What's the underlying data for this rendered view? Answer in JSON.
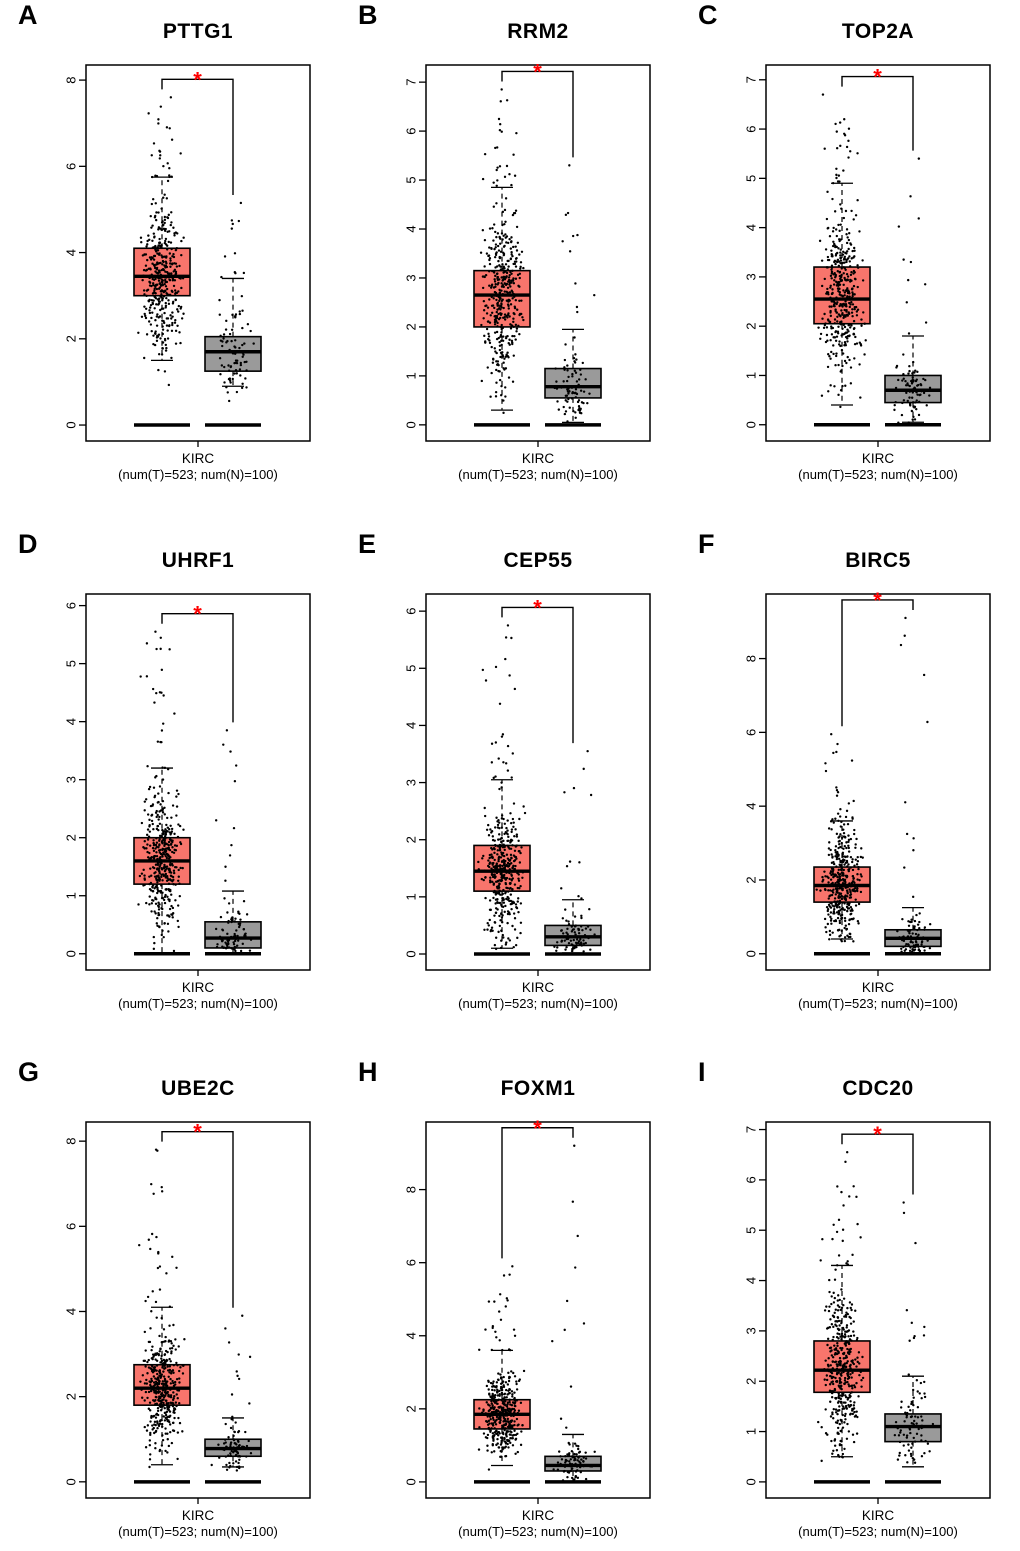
{
  "style": {
    "tumor_color": "#F8756C",
    "normal_color": "#9A9A9A",
    "sig_color": "#FF0000",
    "axis_color": "#000000",
    "background": "#FFFFFF"
  },
  "chart_data": [
    {
      "panel": "A",
      "title": "PTTG1",
      "type": "boxplot",
      "xlabel": "KIRC",
      "xlabel_sub": "(num(T)=523; num(N)=100)",
      "significance": "*",
      "ylim": [
        -0.37,
        8.35
      ],
      "yticks": [
        0,
        2,
        4,
        6,
        8
      ],
      "groups": [
        {
          "name": "Tumor",
          "n": 523,
          "color": "#F8756C",
          "whisker_low": 1.5,
          "q1": 3.0,
          "median": 3.45,
          "q3": 4.1,
          "whisker_high": 5.75,
          "max_point": 7.6,
          "zero_rug": true
        },
        {
          "name": "Normal",
          "n": 100,
          "color": "#9A9A9A",
          "whisker_low": 0.9,
          "q1": 1.25,
          "median": 1.7,
          "q3": 2.05,
          "whisker_high": 3.4,
          "max_point": 5.15,
          "zero_rug": true
        }
      ]
    },
    {
      "panel": "B",
      "title": "RRM2",
      "type": "boxplot",
      "xlabel": "KIRC",
      "xlabel_sub": "(num(T)=523; num(N)=100)",
      "significance": "*",
      "ylim": [
        -0.33,
        7.35
      ],
      "yticks": [
        0,
        1,
        2,
        3,
        4,
        5,
        6,
        7
      ],
      "groups": [
        {
          "name": "Tumor",
          "n": 523,
          "color": "#F8756C",
          "whisker_low": 0.3,
          "q1": 2.0,
          "median": 2.65,
          "q3": 3.15,
          "whisker_high": 4.85,
          "max_point": 6.85,
          "zero_rug": true
        },
        {
          "name": "Normal",
          "n": 100,
          "color": "#9A9A9A",
          "whisker_low": 0.05,
          "q1": 0.55,
          "median": 0.78,
          "q3": 1.15,
          "whisker_high": 1.95,
          "max_point": 5.3,
          "zero_rug": true
        }
      ]
    },
    {
      "panel": "C",
      "title": "TOP2A",
      "type": "boxplot",
      "xlabel": "KIRC",
      "xlabel_sub": "(num(T)=523; num(N)=100)",
      "significance": "*",
      "ylim": [
        -0.33,
        7.3
      ],
      "yticks": [
        0,
        1,
        2,
        3,
        4,
        5,
        6,
        7
      ],
      "groups": [
        {
          "name": "Tumor",
          "n": 523,
          "color": "#F8756C",
          "whisker_low": 0.4,
          "q1": 2.05,
          "median": 2.55,
          "q3": 3.2,
          "whisker_high": 4.9,
          "max_point": 6.7,
          "zero_rug": true
        },
        {
          "name": "Normal",
          "n": 100,
          "color": "#9A9A9A",
          "whisker_low": 0.05,
          "q1": 0.45,
          "median": 0.7,
          "q3": 1.0,
          "whisker_high": 1.8,
          "max_point": 5.4,
          "zero_rug": true
        }
      ]
    },
    {
      "panel": "D",
      "title": "UHRF1",
      "type": "boxplot",
      "xlabel": "KIRC",
      "xlabel_sub": "(num(T)=523; num(N)=100)",
      "significance": "*",
      "ylim": [
        -0.28,
        6.2
      ],
      "yticks": [
        0,
        1,
        2,
        3,
        4,
        5,
        6
      ],
      "groups": [
        {
          "name": "Tumor",
          "n": 523,
          "color": "#F8756C",
          "whisker_low": 0.02,
          "q1": 1.2,
          "median": 1.6,
          "q3": 2.0,
          "whisker_high": 3.2,
          "max_point": 5.55,
          "zero_rug": true
        },
        {
          "name": "Normal",
          "n": 100,
          "color": "#9A9A9A",
          "whisker_low": 0.02,
          "q1": 0.1,
          "median": 0.27,
          "q3": 0.55,
          "whisker_high": 1.08,
          "max_point": 3.85,
          "zero_rug": true
        }
      ]
    },
    {
      "panel": "E",
      "title": "CEP55",
      "type": "boxplot",
      "xlabel": "KIRC",
      "xlabel_sub": "(num(T)=523; num(N)=100)",
      "significance": "*",
      "ylim": [
        -0.28,
        6.3
      ],
      "yticks": [
        0,
        1,
        2,
        3,
        4,
        5,
        6
      ],
      "groups": [
        {
          "name": "Tumor",
          "n": 523,
          "color": "#F8756C",
          "whisker_low": 0.1,
          "q1": 1.1,
          "median": 1.45,
          "q3": 1.9,
          "whisker_high": 3.05,
          "max_point": 5.75,
          "zero_rug": true
        },
        {
          "name": "Normal",
          "n": 100,
          "color": "#9A9A9A",
          "whisker_low": 0.02,
          "q1": 0.15,
          "median": 0.3,
          "q3": 0.5,
          "whisker_high": 0.95,
          "max_point": 3.55,
          "zero_rug": true
        }
      ]
    },
    {
      "panel": "F",
      "title": "BIRC5",
      "type": "boxplot",
      "xlabel": "KIRC",
      "xlabel_sub": "(num(T)=523; num(N)=100)",
      "significance": "*",
      "ylim": [
        -0.44,
        9.75
      ],
      "yticks": [
        0,
        2,
        4,
        6,
        8
      ],
      "groups": [
        {
          "name": "Tumor",
          "n": 523,
          "color": "#F8756C",
          "whisker_low": 0.4,
          "q1": 1.4,
          "median": 1.85,
          "q3": 2.35,
          "whisker_high": 3.6,
          "max_point": 5.95,
          "zero_rug": true
        },
        {
          "name": "Normal",
          "n": 100,
          "color": "#9A9A9A",
          "whisker_low": 0.02,
          "q1": 0.2,
          "median": 0.42,
          "q3": 0.65,
          "whisker_high": 1.25,
          "max_point": 9.1,
          "zero_rug": true
        }
      ]
    },
    {
      "panel": "G",
      "title": "UBE2C",
      "type": "boxplot",
      "xlabel": "KIRC",
      "xlabel_sub": "(num(T)=523; num(N)=100)",
      "significance": "*",
      "ylim": [
        -0.38,
        8.45
      ],
      "yticks": [
        0,
        2,
        4,
        6,
        8
      ],
      "groups": [
        {
          "name": "Tumor",
          "n": 523,
          "color": "#F8756C",
          "whisker_low": 0.4,
          "q1": 1.8,
          "median": 2.2,
          "q3": 2.75,
          "whisker_high": 4.1,
          "max_point": 7.8,
          "zero_rug": true
        },
        {
          "name": "Normal",
          "n": 100,
          "color": "#9A9A9A",
          "whisker_low": 0.35,
          "q1": 0.6,
          "median": 0.78,
          "q3": 1.0,
          "whisker_high": 1.5,
          "max_point": 3.9,
          "zero_rug": true
        }
      ]
    },
    {
      "panel": "H",
      "title": "FOXM1",
      "type": "boxplot",
      "xlabel": "KIRC",
      "xlabel_sub": "(num(T)=523; num(N)=100)",
      "significance": "*",
      "ylim": [
        -0.44,
        9.85
      ],
      "yticks": [
        0,
        2,
        4,
        6,
        8
      ],
      "groups": [
        {
          "name": "Tumor",
          "n": 523,
          "color": "#F8756C",
          "whisker_low": 0.45,
          "q1": 1.45,
          "median": 1.85,
          "q3": 2.25,
          "whisker_high": 3.6,
          "max_point": 5.9,
          "zero_rug": true
        },
        {
          "name": "Normal",
          "n": 100,
          "color": "#9A9A9A",
          "whisker_low": 0.02,
          "q1": 0.3,
          "median": 0.45,
          "q3": 0.7,
          "whisker_high": 1.3,
          "max_point": 9.2,
          "zero_rug": true
        }
      ]
    },
    {
      "panel": "I",
      "title": "CDC20",
      "type": "boxplot",
      "xlabel": "KIRC",
      "xlabel_sub": "(num(T)=523; num(N)=100)",
      "significance": "*",
      "ylim": [
        -0.32,
        7.15
      ],
      "yticks": [
        0,
        1,
        2,
        3,
        4,
        5,
        6,
        7
      ],
      "groups": [
        {
          "name": "Tumor",
          "n": 523,
          "color": "#F8756C",
          "whisker_low": 0.5,
          "q1": 1.78,
          "median": 2.22,
          "q3": 2.8,
          "whisker_high": 4.3,
          "max_point": 6.55,
          "zero_rug": true
        },
        {
          "name": "Normal",
          "n": 100,
          "color": "#9A9A9A",
          "whisker_low": 0.3,
          "q1": 0.8,
          "median": 1.1,
          "q3": 1.35,
          "whisker_high": 2.1,
          "max_point": 5.55,
          "zero_rug": true
        }
      ]
    }
  ]
}
